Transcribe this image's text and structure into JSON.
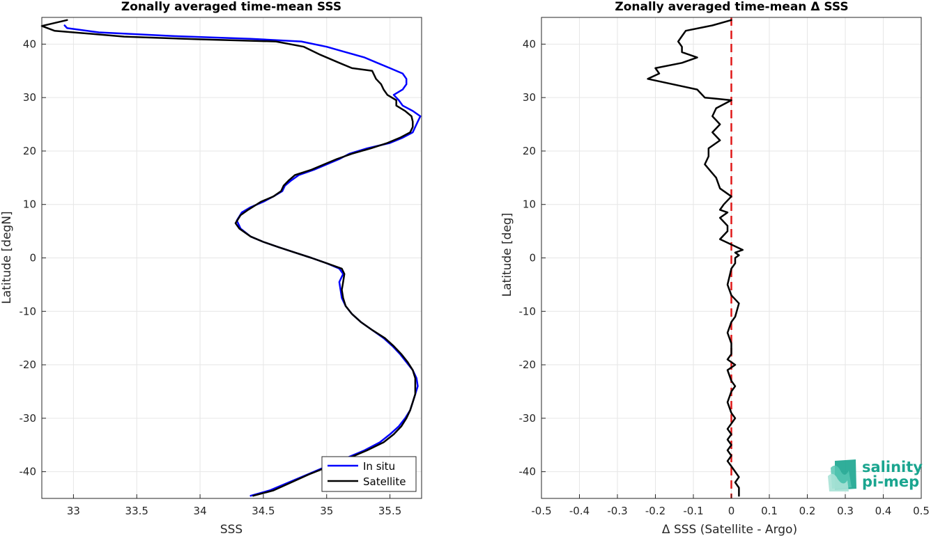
{
  "chart_data": [
    {
      "type": "line",
      "title": "Zonally averaged time-mean SSS",
      "xlabel": "SSS",
      "ylabel": "Latitude [degN]",
      "xlim": [
        32.75,
        35.75
      ],
      "ylim": [
        -45,
        45
      ],
      "xticks": [
        33,
        33.5,
        34,
        34.5,
        35,
        35.5
      ],
      "xtick_labels": [
        "33",
        "33.5",
        "34",
        "34.5",
        "35",
        "35.5"
      ],
      "yticks": [
        -40,
        -30,
        -20,
        -10,
        0,
        10,
        20,
        30,
        40
      ],
      "ytick_labels": [
        "-40",
        "-30",
        "-20",
        "-10",
        "0",
        "10",
        "20",
        "30",
        "40"
      ],
      "grid": true,
      "legend": "bottom-right",
      "series": [
        {
          "name": "In situ",
          "color": "#0000ff",
          "points": [
            [
              34.4,
              -44.5
            ],
            [
              34.55,
              -43.5
            ],
            [
              34.7,
              -42.0
            ],
            [
              34.85,
              -40.5
            ],
            [
              35.0,
              -39.0
            ],
            [
              35.15,
              -37.5
            ],
            [
              35.3,
              -36.0
            ],
            [
              35.42,
              -34.5
            ],
            [
              35.5,
              -33.0
            ],
            [
              35.57,
              -31.5
            ],
            [
              35.62,
              -30.0
            ],
            [
              35.66,
              -28.5
            ],
            [
              35.68,
              -27.0
            ],
            [
              35.7,
              -25.5
            ],
            [
              35.72,
              -24.0
            ],
            [
              35.71,
              -22.5
            ],
            [
              35.68,
              -21.0
            ],
            [
              35.63,
              -19.5
            ],
            [
              35.58,
              -18.0
            ],
            [
              35.52,
              -16.5
            ],
            [
              35.45,
              -15.0
            ],
            [
              35.36,
              -13.5
            ],
            [
              35.27,
              -12.0
            ],
            [
              35.2,
              -10.5
            ],
            [
              35.15,
              -9.0
            ],
            [
              35.12,
              -7.5
            ],
            [
              35.11,
              -6.0
            ],
            [
              35.1,
              -4.5
            ],
            [
              35.13,
              -3.0
            ],
            [
              35.1,
              -2.0
            ],
            [
              35.0,
              -1.0
            ],
            [
              34.88,
              0.0
            ],
            [
              34.75,
              1.0
            ],
            [
              34.62,
              2.0
            ],
            [
              34.5,
              3.0
            ],
            [
              34.4,
              4.0
            ],
            [
              34.32,
              5.5
            ],
            [
              34.29,
              7.0
            ],
            [
              34.33,
              8.5
            ],
            [
              34.4,
              9.5
            ],
            [
              34.5,
              10.5
            ],
            [
              34.58,
              11.5
            ],
            [
              34.65,
              12.5
            ],
            [
              34.67,
              13.5
            ],
            [
              34.72,
              14.5
            ],
            [
              34.78,
              15.5
            ],
            [
              34.9,
              16.5
            ],
            [
              35.0,
              17.5
            ],
            [
              35.1,
              18.5
            ],
            [
              35.18,
              19.5
            ],
            [
              35.32,
              20.5
            ],
            [
              35.5,
              21.5
            ],
            [
              35.6,
              22.5
            ],
            [
              35.68,
              23.5
            ],
            [
              35.7,
              24.5
            ],
            [
              35.72,
              25.5
            ],
            [
              35.74,
              26.5
            ],
            [
              35.68,
              27.5
            ],
            [
              35.6,
              28.5
            ],
            [
              35.57,
              29.5
            ],
            [
              35.53,
              30.5
            ],
            [
              35.6,
              31.5
            ],
            [
              35.63,
              32.5
            ],
            [
              35.63,
              33.5
            ],
            [
              35.6,
              34.5
            ],
            [
              35.5,
              35.5
            ],
            [
              35.4,
              36.5
            ],
            [
              35.3,
              37.5
            ],
            [
              35.15,
              38.5
            ],
            [
              35.0,
              39.5
            ],
            [
              34.8,
              40.5
            ],
            [
              34.4,
              41.0
            ],
            [
              33.8,
              41.5
            ],
            [
              33.2,
              42.2
            ],
            [
              32.95,
              43.0
            ],
            [
              32.93,
              43.5
            ]
          ]
        },
        {
          "name": "Satellite",
          "color": "#000000",
          "points": [
            [
              34.42,
              -44.5
            ],
            [
              34.58,
              -43.5
            ],
            [
              34.72,
              -42.0
            ],
            [
              34.86,
              -40.5
            ],
            [
              35.02,
              -39.0
            ],
            [
              35.17,
              -37.5
            ],
            [
              35.32,
              -36.0
            ],
            [
              35.45,
              -34.5
            ],
            [
              35.53,
              -33.0
            ],
            [
              35.59,
              -31.5
            ],
            [
              35.63,
              -30.0
            ],
            [
              35.66,
              -28.5
            ],
            [
              35.68,
              -27.0
            ],
            [
              35.7,
              -25.5
            ],
            [
              35.7,
              -24.0
            ],
            [
              35.7,
              -22.5
            ],
            [
              35.68,
              -21.0
            ],
            [
              35.64,
              -19.5
            ],
            [
              35.59,
              -18.0
            ],
            [
              35.53,
              -16.5
            ],
            [
              35.46,
              -15.0
            ],
            [
              35.36,
              -13.5
            ],
            [
              35.27,
              -12.0
            ],
            [
              35.2,
              -10.5
            ],
            [
              35.15,
              -9.0
            ],
            [
              35.13,
              -7.5
            ],
            [
              35.12,
              -6.0
            ],
            [
              35.13,
              -4.5
            ],
            [
              35.14,
              -3.0
            ],
            [
              35.12,
              -2.0
            ],
            [
              35.0,
              -1.0
            ],
            [
              34.88,
              0.0
            ],
            [
              34.75,
              1.0
            ],
            [
              34.62,
              2.0
            ],
            [
              34.5,
              3.0
            ],
            [
              34.4,
              4.0
            ],
            [
              34.31,
              5.5
            ],
            [
              34.28,
              6.5
            ],
            [
              34.32,
              8.0
            ],
            [
              34.38,
              9.0
            ],
            [
              34.48,
              10.5
            ],
            [
              34.58,
              11.5
            ],
            [
              34.64,
              12.5
            ],
            [
              34.66,
              13.5
            ],
            [
              34.7,
              14.5
            ],
            [
              34.75,
              15.5
            ],
            [
              34.88,
              16.5
            ],
            [
              34.98,
              17.5
            ],
            [
              35.08,
              18.5
            ],
            [
              35.2,
              19.5
            ],
            [
              35.35,
              20.5
            ],
            [
              35.48,
              21.5
            ],
            [
              35.58,
              22.5
            ],
            [
              35.66,
              23.5
            ],
            [
              35.68,
              24.5
            ],
            [
              35.68,
              25.5
            ],
            [
              35.67,
              26.5
            ],
            [
              35.62,
              27.5
            ],
            [
              35.55,
              28.5
            ],
            [
              35.55,
              29.5
            ],
            [
              35.48,
              30.5
            ],
            [
              35.45,
              31.5
            ],
            [
              35.43,
              32.5
            ],
            [
              35.39,
              33.5
            ],
            [
              35.36,
              35.0
            ],
            [
              35.2,
              35.5
            ],
            [
              35.1,
              36.5
            ],
            [
              34.95,
              38.0
            ],
            [
              34.82,
              39.5
            ],
            [
              34.6,
              40.5
            ],
            [
              34.0,
              40.9
            ],
            [
              33.4,
              41.4
            ],
            [
              32.85,
              42.5
            ],
            [
              32.75,
              43.4
            ],
            [
              32.95,
              44.5
            ]
          ]
        }
      ]
    },
    {
      "type": "line",
      "title": "Zonally averaged time-mean Δ SSS",
      "xlabel": "Δ SSS (Satellite - Argo)",
      "ylabel": "Latitude [deg]",
      "xlim": [
        -0.5,
        0.5
      ],
      "ylim": [
        -45,
        45
      ],
      "xticks": [
        -0.5,
        -0.4,
        -0.3,
        -0.2,
        -0.1,
        0,
        0.1,
        0.2,
        0.3,
        0.4,
        0.5
      ],
      "xtick_labels": [
        "-0.5",
        "-0.4",
        "-0.3",
        "-0.2",
        "-0.1",
        "0",
        "0.1",
        "0.2",
        "0.3",
        "0.4",
        "0.5"
      ],
      "yticks": [
        -40,
        -30,
        -20,
        -10,
        0,
        10,
        20,
        30,
        40
      ],
      "ytick_labels": [
        "-40",
        "-30",
        "-20",
        "-10",
        "0",
        "10",
        "20",
        "30",
        "40"
      ],
      "grid": true,
      "reference_line": {
        "x": 0,
        "color": "#e01818",
        "style": "dashed"
      },
      "series": [
        {
          "color": "#000000",
          "points": [
            [
              0.02,
              -44.5
            ],
            [
              0.02,
              -43.0
            ],
            [
              0.01,
              -42.0
            ],
            [
              0.02,
              -41.0
            ],
            [
              0.01,
              -40.0
            ],
            [
              0.0,
              -39.0
            ],
            [
              -0.01,
              -38.0
            ],
            [
              0.0,
              -37.0
            ],
            [
              -0.01,
              -36.0
            ],
            [
              0.0,
              -35.0
            ],
            [
              -0.01,
              -34.0
            ],
            [
              0.0,
              -33.0
            ],
            [
              -0.01,
              -32.0
            ],
            [
              0.0,
              -31.0
            ],
            [
              0.01,
              -30.0
            ],
            [
              0.0,
              -29.0
            ],
            [
              -0.01,
              -27.0
            ],
            [
              0.0,
              -25.0
            ],
            [
              0.01,
              -24.0
            ],
            [
              0.0,
              -23.0
            ],
            [
              -0.01,
              -21.0
            ],
            [
              0.01,
              -20.0
            ],
            [
              -0.01,
              -19.0
            ],
            [
              0.0,
              -18.0
            ],
            [
              0.0,
              -16.0
            ],
            [
              -0.01,
              -14.0
            ],
            [
              0.0,
              -12.0
            ],
            [
              0.01,
              -11.0
            ],
            [
              0.02,
              -8.5
            ],
            [
              0.0,
              -7.0
            ],
            [
              -0.01,
              -5.0
            ],
            [
              0.0,
              -2.0
            ],
            [
              0.01,
              -1.0
            ],
            [
              0.01,
              0.0
            ],
            [
              0.02,
              0.5
            ],
            [
              0.01,
              1.0
            ],
            [
              0.03,
              1.5
            ],
            [
              -0.03,
              3.5
            ],
            [
              -0.01,
              5.0
            ],
            [
              -0.01,
              6.0
            ],
            [
              -0.03,
              7.5
            ],
            [
              -0.01,
              8.5
            ],
            [
              -0.03,
              9.0
            ],
            [
              -0.02,
              10.0
            ],
            [
              0.0,
              11.5
            ],
            [
              -0.03,
              13.0
            ],
            [
              -0.04,
              15.0
            ],
            [
              -0.07,
              17.5
            ],
            [
              -0.06,
              19.0
            ],
            [
              -0.06,
              20.5
            ],
            [
              -0.03,
              22.0
            ],
            [
              -0.05,
              23.5
            ],
            [
              -0.03,
              25.0
            ],
            [
              -0.05,
              26.5
            ],
            [
              -0.04,
              28.0
            ],
            [
              0.0,
              29.5
            ],
            [
              -0.07,
              30.0
            ],
            [
              -0.09,
              31.5
            ],
            [
              -0.22,
              33.5
            ],
            [
              -0.19,
              34.5
            ],
            [
              -0.2,
              35.5
            ],
            [
              -0.13,
              36.5
            ],
            [
              -0.09,
              37.5
            ],
            [
              -0.13,
              38.5
            ],
            [
              -0.13,
              39.5
            ],
            [
              -0.14,
              40.5
            ],
            [
              -0.13,
              41.5
            ],
            [
              -0.12,
              42.5
            ],
            [
              -0.05,
              43.5
            ],
            [
              0.0,
              44.5
            ]
          ]
        }
      ]
    }
  ],
  "legend": {
    "entries": [
      {
        "label": "In situ",
        "color": "#0000ff"
      },
      {
        "label": "Satellite",
        "color": "#000000"
      }
    ]
  },
  "logo": {
    "line1": "salinity",
    "line2": "pi-mep",
    "color": "#1aa58f"
  }
}
